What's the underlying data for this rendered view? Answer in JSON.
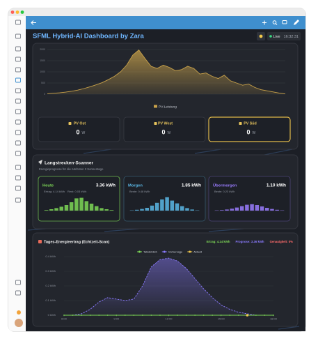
{
  "app": {
    "title": "SFML Hybrid-AI Dashboard by Zara",
    "status": "Live",
    "time": "16:32:31"
  },
  "pv_strings": [
    {
      "name": "PV Ost",
      "value": 0,
      "unit": "W"
    },
    {
      "name": "PV West",
      "value": 0,
      "unit": "W"
    },
    {
      "name": "PV Süd",
      "value": 0,
      "unit": "W"
    }
  ],
  "scanner": {
    "title": "Langstrecken-Scanner",
    "subtitle": "Energieprognose für die nächsten 3 Sonnentage",
    "ylim": [
      0,
      0.5
    ],
    "days": [
      {
        "name": "Heute",
        "total": "3.36 kWh",
        "notes": [
          "Ertrag: 4.14 kWh",
          "Rest: 0.03 kWh"
        ],
        "color": "#7ed957",
        "values": [
          0.02,
          0.05,
          0.09,
          0.14,
          0.2,
          0.3,
          0.44,
          0.46,
          0.34,
          0.25,
          0.16,
          0.09,
          0.05,
          0.02
        ]
      },
      {
        "name": "Morgen",
        "total": "1.85 kWh",
        "notes": [
          "Beste: 0.48 kWh"
        ],
        "color": "#5bb8e6",
        "values": [
          0.01,
          0.03,
          0.06,
          0.1,
          0.18,
          0.28,
          0.4,
          0.48,
          0.36,
          0.26,
          0.16,
          0.09,
          0.04,
          0.01
        ]
      },
      {
        "name": "Übermorgen",
        "total": "1.10 kWh",
        "notes": [
          "Beste: 0.23 kWh"
        ],
        "color": "#9a7cff",
        "values": [
          0.01,
          0.02,
          0.04,
          0.07,
          0.11,
          0.16,
          0.21,
          0.23,
          0.2,
          0.15,
          0.1,
          0.06,
          0.03,
          0.01
        ]
      }
    ]
  },
  "chart_data": [
    {
      "type": "area",
      "series": [
        {
          "name": "PV-Leistung",
          "color": "#c9a24a",
          "values": [
            20,
            40,
            60,
            90,
            130,
            180,
            250,
            330,
            420,
            520,
            650,
            800,
            1000,
            1300,
            1750,
            1980,
            1600,
            1250,
            1150,
            1300,
            1200,
            1050,
            1100,
            1250,
            1150,
            900,
            950,
            800,
            700,
            850,
            600,
            500,
            400,
            450,
            300,
            200,
            150,
            100,
            50,
            10
          ]
        }
      ],
      "ylim": [
        0,
        2000
      ],
      "yticks": [
        0,
        500,
        1000,
        1500,
        2000
      ],
      "grid": true
    },
    {
      "type": "line",
      "title": "Tages-Energieertrag (Echtzeit-Scan)",
      "stats": [
        {
          "text": "Ertrag: 4.14 kWh",
          "color": "#7ed957"
        },
        {
          "text": "Prognose: 3.36 kWh",
          "color": "#8b7bff"
        },
        {
          "text": "Genauigkeit: 0%",
          "color": "#ff6b6b"
        }
      ],
      "x": [
        6,
        6.5,
        7,
        7.5,
        8,
        8.5,
        9,
        9.5,
        10,
        10.5,
        11,
        11.5,
        12,
        12.5,
        13,
        13.5,
        14,
        14.5,
        15,
        15.5,
        16,
        16.5,
        17,
        17.5,
        18
      ],
      "series": [
        {
          "name": "Tatsächlich",
          "color": "#7ed957",
          "values": [
            0,
            0,
            0,
            0,
            0,
            0,
            0,
            0,
            0,
            0,
            0,
            0,
            0,
            0,
            0,
            0,
            0,
            0,
            0,
            0,
            0,
            0,
            0,
            0,
            0
          ]
        },
        {
          "name": "Vorhersage",
          "color": "#8b7bff",
          "values": [
            0,
            0,
            0.01,
            0.04,
            0.09,
            0.12,
            0.11,
            0.1,
            0.11,
            0.2,
            0.33,
            0.38,
            0.39,
            0.37,
            0.32,
            0.25,
            0.18,
            0.12,
            0.07,
            0.04,
            0.02,
            0.01,
            0,
            0,
            0
          ]
        },
        {
          "name": "Aktuell",
          "color": "#f2c94c",
          "values": [
            null,
            null,
            null,
            null,
            null,
            null,
            null,
            null,
            null,
            null,
            null,
            null,
            null,
            null,
            null,
            null,
            null,
            null,
            null,
            null,
            null,
            0,
            null,
            null,
            null
          ]
        }
      ],
      "xlim": [
        6,
        18
      ],
      "xticks": [
        {
          "value": 6,
          "label": "6:00"
        },
        {
          "value": 9,
          "label": "9:00"
        },
        {
          "value": 12,
          "label": "12:00"
        },
        {
          "value": 15,
          "label": "15:00"
        },
        {
          "value": 18,
          "label": "18:00"
        }
      ],
      "ylim": [
        0,
        0.4
      ],
      "yticks": [
        {
          "value": 0,
          "label": "0 kWh"
        },
        {
          "value": 0.1,
          "label": "0.1 kWh"
        },
        {
          "value": 0.2,
          "label": "0.2 kWh"
        },
        {
          "value": 0.3,
          "label": "0.3 kWh"
        },
        {
          "value": 0.4,
          "label": "0.4 kWh"
        }
      ],
      "grid": true
    }
  ]
}
